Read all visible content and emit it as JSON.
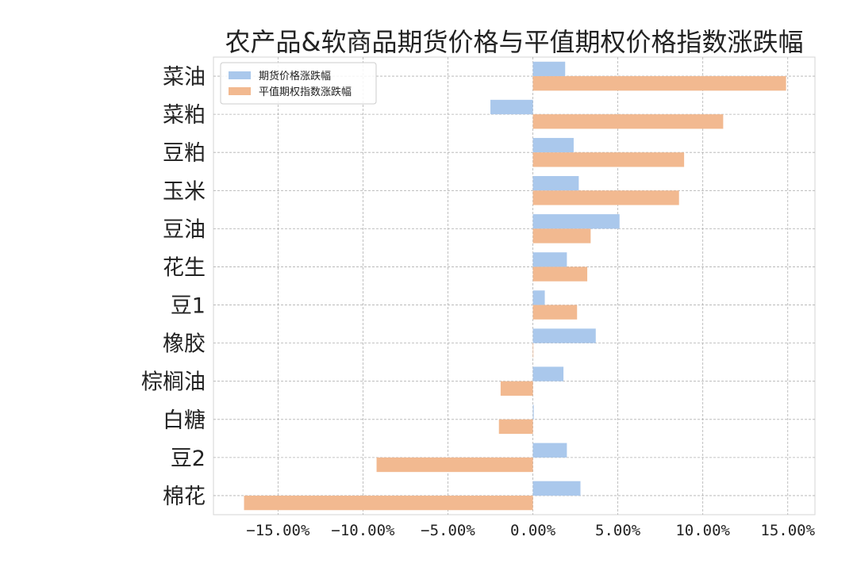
{
  "chart_data": {
    "type": "bar",
    "orientation": "horizontal",
    "title": "农产品&软商品期货价格与平值期权价格指数涨跌幅",
    "xlabel": "",
    "ylabel": "",
    "categories": [
      "菜油",
      "菜粕",
      "豆粕",
      "玉米",
      "豆油",
      "花生",
      "豆1",
      "橡胶",
      "棕榈油",
      "白糖",
      "豆2",
      "棉花"
    ],
    "series": [
      {
        "name": "期货价格涨跌幅",
        "color": "#aac8ec",
        "values": [
          1.9,
          -2.5,
          2.4,
          2.7,
          5.1,
          2.0,
          0.7,
          3.7,
          1.8,
          0.05,
          2.0,
          2.8
        ]
      },
      {
        "name": "平值期权指数涨跌幅",
        "color": "#f2b990",
        "values": [
          14.9,
          11.2,
          8.9,
          8.6,
          3.4,
          3.2,
          2.6,
          0.0,
          -1.9,
          -2.0,
          -9.2,
          -17.0
        ]
      }
    ],
    "xlim": [
      -18.8,
      16.6
    ],
    "xticks": [
      -15,
      -10,
      -5,
      0,
      5,
      10,
      15
    ],
    "xtick_labels": [
      "−15.00%",
      "−10.00%",
      "−5.00%",
      "0.00%",
      "5.00%",
      "10.00%",
      "15.00%"
    ],
    "grid": true,
    "legend_position": "top-left"
  }
}
